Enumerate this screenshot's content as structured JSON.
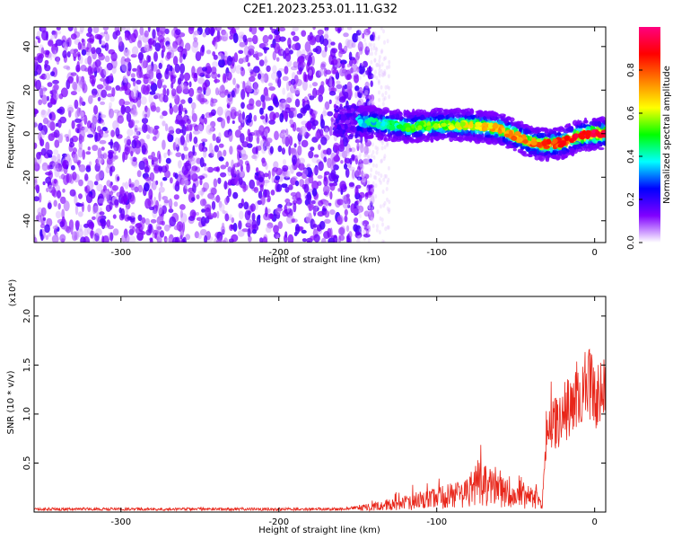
{
  "figure_title": "C2E1.2023.253.01.11.G32",
  "chart_data": [
    {
      "type": "heatmap",
      "xlabel": "Height of straight line (km)",
      "ylabel": "Frequency (Hz)",
      "xlim": [
        -355,
        7
      ],
      "ylim": [
        -50,
        49
      ],
      "x_ticks": [
        -300,
        -200,
        -100,
        0
      ],
      "y_ticks": [
        -40,
        -20,
        0,
        20,
        40
      ],
      "colorbar": {
        "label": "Normalized spectral amplitude",
        "range": [
          0,
          1
        ],
        "ticks": [
          "0.0",
          "0.2",
          "0.4",
          "0.6",
          "0.8"
        ],
        "colormap": [
          "#ffffff",
          "#8000ff",
          "#0000ff",
          "#00ffff",
          "#00ff00",
          "#ffff00",
          "#ff8000",
          "#ff0000",
          "#ff0080"
        ]
      },
      "ridge": {
        "description": "dominant-frequency ridge",
        "x": [
          -160,
          -140,
          -120,
          -100,
          -80,
          -60,
          -40,
          -30,
          -20,
          -10,
          0,
          7
        ],
        "frequency": [
          6,
          5,
          3,
          4,
          4,
          2,
          -4,
          -5,
          -4,
          -1,
          0,
          0
        ]
      }
    },
    {
      "type": "line",
      "xlabel": "Height of straight line (km)",
      "ylabel": "SNR (10 * v/v)",
      "y_multiplier": "(x10⁴)",
      "xlim": [
        -355,
        7
      ],
      "ylim": [
        0,
        2.2
      ],
      "x_ticks": [
        -300,
        -200,
        -100,
        0
      ],
      "y_ticks": [
        0.5,
        1.0,
        1.5,
        2.0
      ],
      "y_tick_labels": [
        "0.5",
        "1.0",
        "1.5",
        "2.0"
      ],
      "series": [
        {
          "color": "#e8261a",
          "x": [
            -355,
            -300,
            -250,
            -200,
            -160,
            -150,
            -140,
            -130,
            -120,
            -110,
            -100,
            -90,
            -80,
            -70,
            -60,
            -50,
            -40,
            -33,
            -30,
            -25,
            -20,
            -15,
            -10,
            -5,
            0,
            5,
            7
          ],
          "y": [
            0.03,
            0.03,
            0.03,
            0.03,
            0.03,
            0.05,
            0.07,
            0.1,
            0.12,
            0.15,
            0.18,
            0.22,
            0.3,
            0.35,
            0.32,
            0.25,
            0.2,
            0.15,
            0.85,
            0.9,
            1.0,
            1.1,
            1.25,
            1.35,
            1.2,
            1.3,
            1.35
          ]
        }
      ]
    }
  ]
}
